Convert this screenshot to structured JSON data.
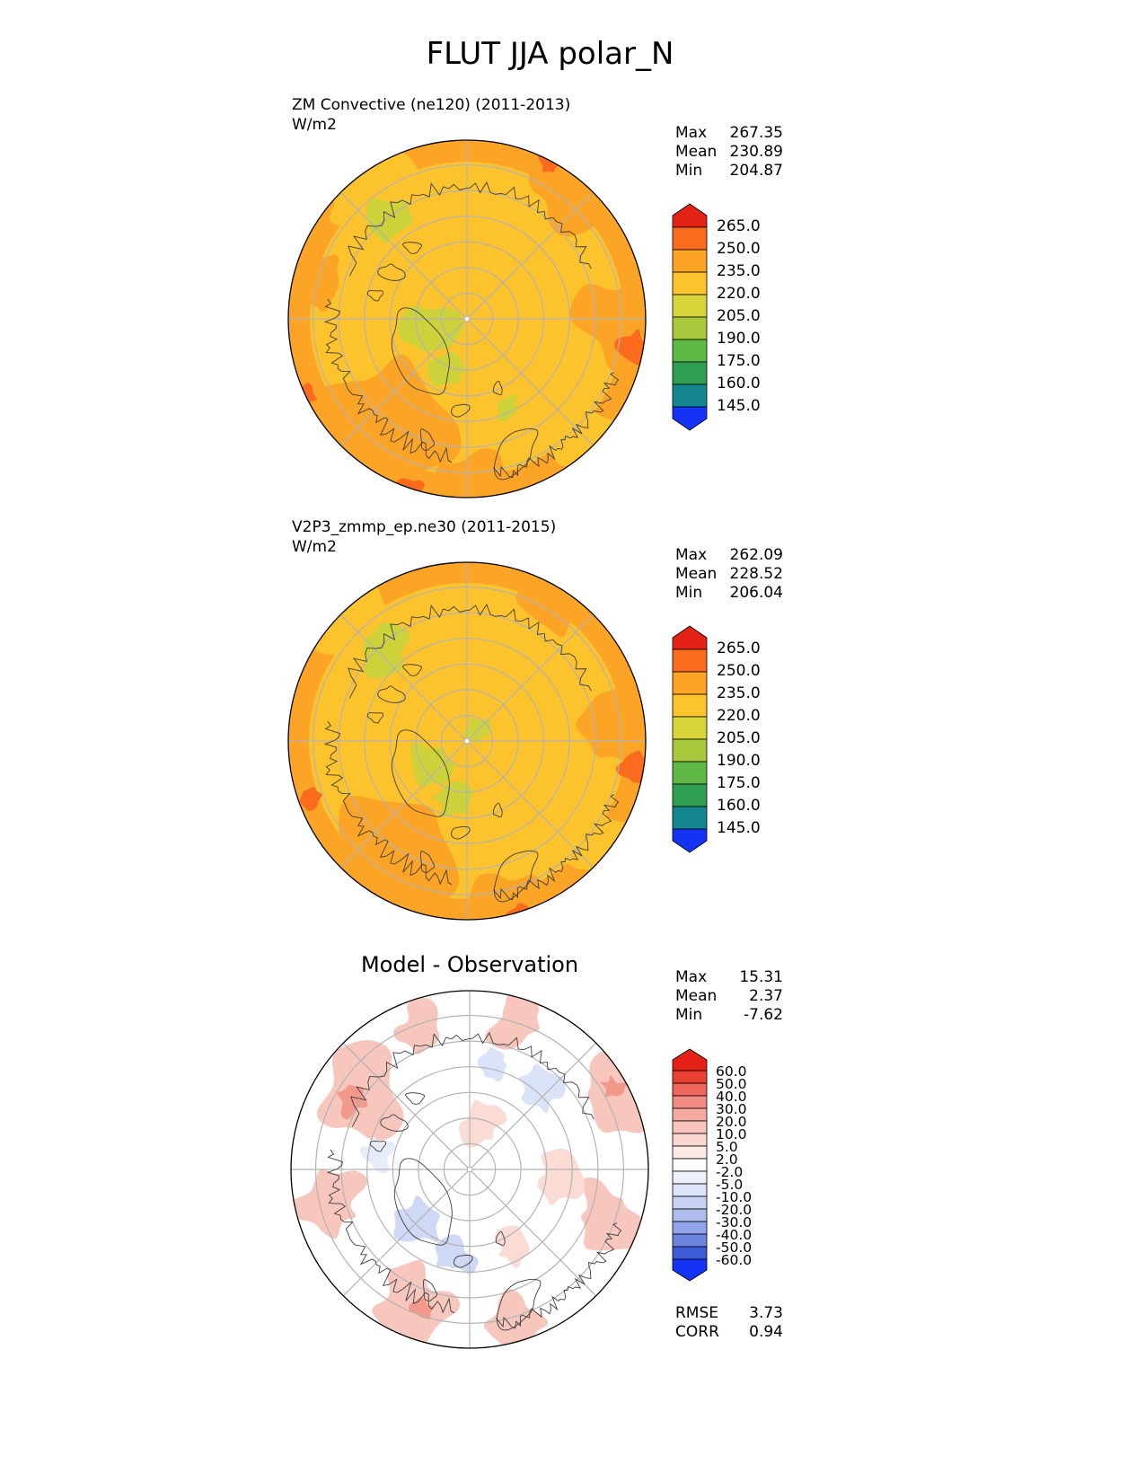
{
  "page_title": "FLUT JJA polar_N",
  "panels": [
    {
      "label_line1": "ZM Convective (ne120) (2011-2013)",
      "label_line2": "W/m2",
      "stats": {
        "max_label": "Max",
        "max": "267.35",
        "mean_label": "Mean",
        "mean": "230.89",
        "min_label": "Min",
        "min": "204.87"
      }
    },
    {
      "label_line1": "V2P3_zmmp_ep.ne30 (2011-2015)",
      "label_line2": "W/m2",
      "stats": {
        "max_label": "Max",
        "max": "262.09",
        "mean_label": "Mean",
        "mean": "228.52",
        "min_label": "Min",
        "min": "206.04"
      }
    },
    {
      "title": "Model - Observation",
      "stats": {
        "max_label": "Max",
        "max": "15.31",
        "mean_label": "Mean",
        "mean": "2.37",
        "min_label": "Min",
        "min": "-7.62"
      },
      "metrics": {
        "rmse_label": "RMSE",
        "rmse": "3.73",
        "corr_label": "CORR",
        "corr": "0.94"
      }
    }
  ],
  "chart_data": [
    {
      "type": "heatmap",
      "subtype": "north-polar-stereographic-filled-contour-map",
      "variable": "FLUT",
      "season": "JJA",
      "region": "polar_N",
      "title": "ZM Convective (ne120) (2011-2013)",
      "units": "W/m2",
      "stats": {
        "max": 267.35,
        "mean": 230.89,
        "min": 204.87
      },
      "levels": [
        265.0,
        250.0,
        235.0,
        220.0,
        205.0,
        190.0,
        175.0,
        160.0,
        145.0
      ],
      "level_labels": [
        "265.0",
        "250.0",
        "235.0",
        "220.0",
        "205.0",
        "190.0",
        "175.0",
        "160.0",
        "145.0"
      ],
      "colors": [
        "#e32114",
        "#fa6b1e",
        "#fca426",
        "#fcc32d",
        "#d9d43a",
        "#a8c93b",
        "#5fb845",
        "#2f9e50",
        "#13868f",
        "#1433f5"
      ],
      "legend_position": "right"
    },
    {
      "type": "heatmap",
      "subtype": "north-polar-stereographic-filled-contour-map",
      "variable": "FLUT",
      "season": "JJA",
      "region": "polar_N",
      "title": "V2P3_zmmp_ep.ne30 (2011-2015)",
      "units": "W/m2",
      "stats": {
        "max": 262.09,
        "mean": 228.52,
        "min": 206.04
      },
      "levels": [
        265.0,
        250.0,
        235.0,
        220.0,
        205.0,
        190.0,
        175.0,
        160.0,
        145.0
      ],
      "level_labels": [
        "265.0",
        "250.0",
        "235.0",
        "220.0",
        "205.0",
        "190.0",
        "175.0",
        "160.0",
        "145.0"
      ],
      "colors": [
        "#e32114",
        "#fa6b1e",
        "#fca426",
        "#fcc32d",
        "#d9d43a",
        "#a8c93b",
        "#5fb845",
        "#2f9e50",
        "#13868f",
        "#1433f5"
      ],
      "legend_position": "right"
    },
    {
      "type": "heatmap",
      "subtype": "north-polar-stereographic-difference-map",
      "variable": "FLUT",
      "season": "JJA",
      "region": "polar_N",
      "title": "Model - Observation",
      "stats": {
        "max": 15.31,
        "mean": 2.37,
        "min": -7.62
      },
      "rmse": 3.73,
      "corr": 0.94,
      "levels": [
        60.0,
        50.0,
        40.0,
        30.0,
        20.0,
        10.0,
        5.0,
        2.0,
        -2.0,
        -5.0,
        -10.0,
        -20.0,
        -30.0,
        -40.0,
        -50.0,
        -60.0
      ],
      "level_labels": [
        "60.0",
        "50.0",
        "40.0",
        "30.0",
        "20.0",
        "10.0",
        "5.0",
        "2.0",
        "-2.0",
        "-5.0",
        "-10.0",
        "-20.0",
        "-30.0",
        "-40.0",
        "-50.0",
        "-60.0"
      ],
      "colors": [
        "#e32114",
        "#ec4034",
        "#f0655b",
        "#f48b82",
        "#f7aaa1",
        "#fac4bc",
        "#fbd7d1",
        "#fde9e5",
        "#ffffff",
        "#edf1fb",
        "#dde4f8",
        "#c8d2f4",
        "#aebdee",
        "#8fa3e8",
        "#6b84e0",
        "#3c5bd6",
        "#1433f5"
      ],
      "legend_position": "right"
    }
  ]
}
